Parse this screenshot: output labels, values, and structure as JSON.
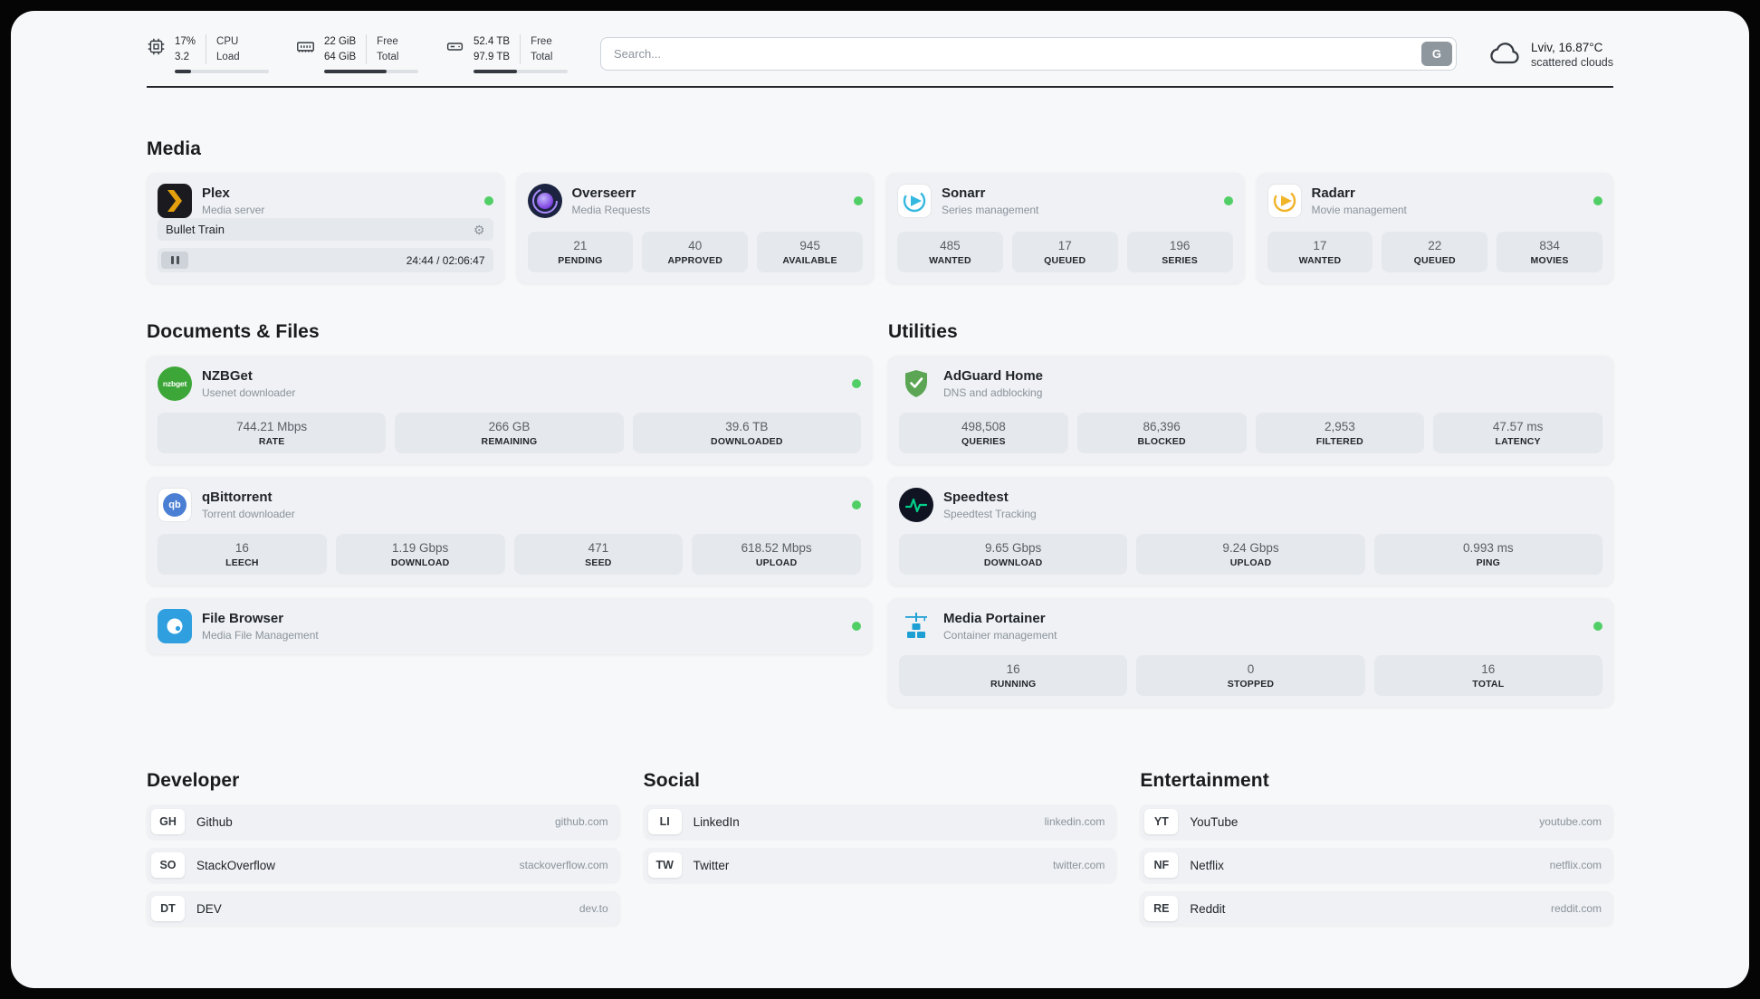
{
  "colors": {
    "status_green": "#51cf66",
    "plex_amber": "#e5a00d",
    "sonarr_blue": "#35b8e0",
    "radarr_amber": "#f0b429",
    "nzbget_green": "#3da639",
    "qbittorrent_blue": "#4a7fd4",
    "filebrowser_blue": "#2f9fe0",
    "adguard_green": "#5ba554",
    "speedtest_green": "#00d08a",
    "portainer_blue": "#1e9fd4",
    "overseerr_purple": "#7c3aed"
  },
  "icons": {
    "gear": "⚙"
  },
  "topbar": {
    "cpu": {
      "value": "17%",
      "load": "3.2",
      "label_top": "CPU",
      "label_bottom": "Load",
      "bar": 17
    },
    "ram": {
      "free": "22 GiB",
      "total": "64 GiB",
      "label_top": "Free",
      "label_bottom": "Total",
      "bar": 66
    },
    "disk": {
      "free": "52.4 TB",
      "total": "97.9 TB",
      "label_top": "Free",
      "label_bottom": "Total",
      "bar": 46
    },
    "search": {
      "placeholder": "Search...",
      "engine_button": "G"
    },
    "weather": {
      "location": "Lviv, 16.87°C",
      "condition": "scattered clouds"
    }
  },
  "media": {
    "title": "Media",
    "plex": {
      "name": "Plex",
      "subtitle": "Media server",
      "now_playing": "Bullet Train",
      "time": "24:44 / 02:06:47"
    },
    "overseerr": {
      "name": "Overseerr",
      "subtitle": "Media Requests",
      "stats": [
        {
          "value": "21",
          "label": "PENDING"
        },
        {
          "value": "40",
          "label": "APPROVED"
        },
        {
          "value": "945",
          "label": "AVAILABLE"
        }
      ]
    },
    "sonarr": {
      "name": "Sonarr",
      "subtitle": "Series management",
      "stats": [
        {
          "value": "485",
          "label": "WANTED"
        },
        {
          "value": "17",
          "label": "QUEUED"
        },
        {
          "value": "196",
          "label": "SERIES"
        }
      ]
    },
    "radarr": {
      "name": "Radarr",
      "subtitle": "Movie management",
      "stats": [
        {
          "value": "17",
          "label": "WANTED"
        },
        {
          "value": "22",
          "label": "QUEUED"
        },
        {
          "value": "834",
          "label": "MOVIES"
        }
      ]
    }
  },
  "documents": {
    "title": "Documents & Files",
    "nzbget": {
      "name": "NZBGet",
      "subtitle": "Usenet downloader",
      "icon_text": "nzbget",
      "stats": [
        {
          "value": "744.21 Mbps",
          "label": "RATE"
        },
        {
          "value": "266 GB",
          "label": "REMAINING"
        },
        {
          "value": "39.6 TB",
          "label": "DOWNLOADED"
        }
      ]
    },
    "qbittorrent": {
      "name": "qBittorrent",
      "subtitle": "Torrent downloader",
      "icon_text": "qb",
      "stats": [
        {
          "value": "16",
          "label": "LEECH"
        },
        {
          "value": "1.19 Gbps",
          "label": "DOWNLOAD"
        },
        {
          "value": "471",
          "label": "SEED"
        },
        {
          "value": "618.52 Mbps",
          "label": "UPLOAD"
        }
      ]
    },
    "filebrowser": {
      "name": "File Browser",
      "subtitle": "Media File Management"
    }
  },
  "utilities": {
    "title": "Utilities",
    "adguard": {
      "name": "AdGuard Home",
      "subtitle": "DNS and adblocking",
      "stats": [
        {
          "value": "498,508",
          "label": "QUERIES"
        },
        {
          "value": "86,396",
          "label": "BLOCKED"
        },
        {
          "value": "2,953",
          "label": "FILTERED"
        },
        {
          "value": "47.57 ms",
          "label": "LATENCY"
        }
      ]
    },
    "speedtest": {
      "name": "Speedtest",
      "subtitle": "Speedtest Tracking",
      "stats": [
        {
          "value": "9.65 Gbps",
          "label": "DOWNLOAD"
        },
        {
          "value": "9.24 Gbps",
          "label": "UPLOAD"
        },
        {
          "value": "0.993 ms",
          "label": "PING"
        }
      ]
    },
    "portainer": {
      "name": "Media Portainer",
      "subtitle": "Container management",
      "stats": [
        {
          "value": "16",
          "label": "RUNNING"
        },
        {
          "value": "0",
          "label": "STOPPED"
        },
        {
          "value": "16",
          "label": "TOTAL"
        }
      ]
    }
  },
  "bookmarks": {
    "columns": [
      {
        "title": "Developer",
        "items": [
          {
            "abbr": "GH",
            "name": "Github",
            "url": "github.com"
          },
          {
            "abbr": "SO",
            "name": "StackOverflow",
            "url": "stackoverflow.com"
          },
          {
            "abbr": "DT",
            "name": "DEV",
            "url": "dev.to"
          }
        ]
      },
      {
        "title": "Social",
        "items": [
          {
            "abbr": "LI",
            "name": "LinkedIn",
            "url": "linkedin.com"
          },
          {
            "abbr": "TW",
            "name": "Twitter",
            "url": "twitter.com"
          }
        ]
      },
      {
        "title": "Entertainment",
        "items": [
          {
            "abbr": "YT",
            "name": "YouTube",
            "url": "youtube.com"
          },
          {
            "abbr": "NF",
            "name": "Netflix",
            "url": "netflix.com"
          },
          {
            "abbr": "RE",
            "name": "Reddit",
            "url": "reddit.com"
          }
        ]
      }
    ]
  }
}
